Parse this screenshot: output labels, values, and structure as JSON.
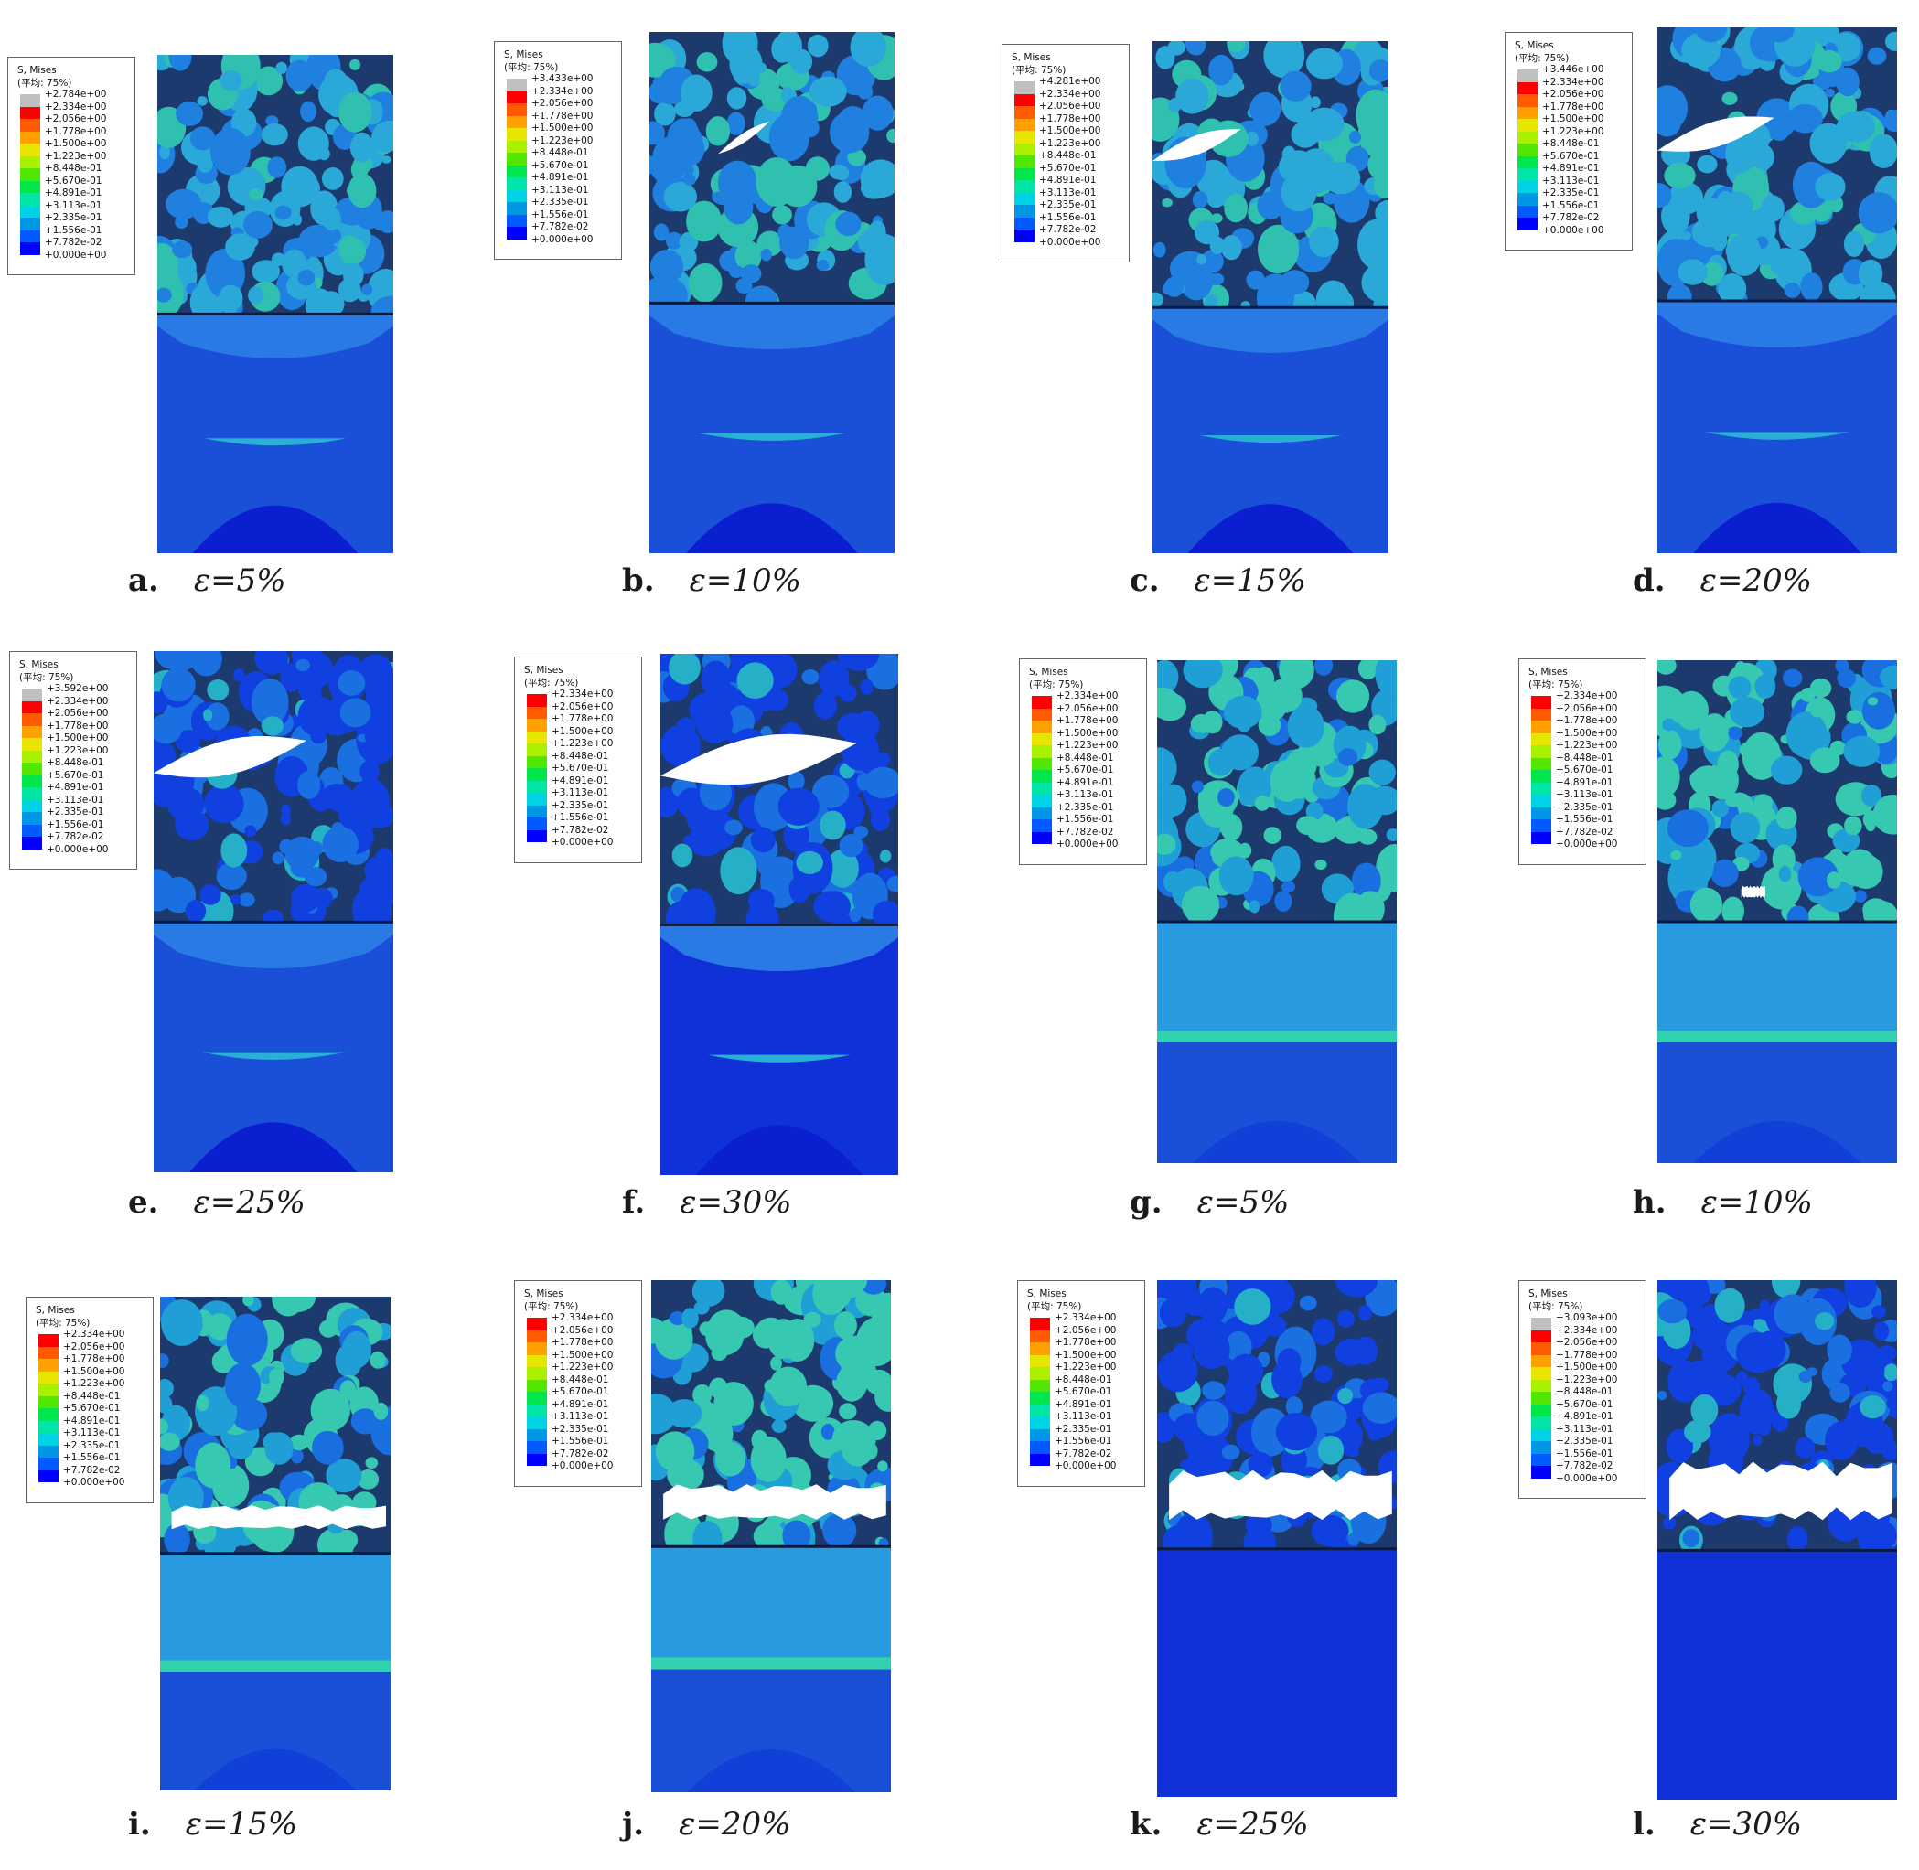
{
  "legend_title": "S, Mises",
  "legend_subtitle": "(平均: 75%)",
  "palette": [
    "#c0c0c0",
    "#ff0000",
    "#ff5a00",
    "#ffa000",
    "#e6e600",
    "#a8f000",
    "#50e600",
    "#00e64a",
    "#00e6a8",
    "#00d2e6",
    "#0096e6",
    "#005aff",
    "#0000ff"
  ],
  "scale_values": [
    "+2.334e+00",
    "+2.056e+00",
    "+1.778e+00",
    "+1.500e+00",
    "+1.223e+00",
    "+8.448e-01",
    "+5.670e-01",
    "+4.891e-01",
    "+3.113e-01",
    "+2.335e-01",
    "+1.556e-01",
    "+7.782e-02",
    "+0.000e+00"
  ],
  "panels": [
    {
      "label": "a.",
      "strain": "ε=5%",
      "max": "+2.784e+00",
      "group": "top",
      "crack": 0
    },
    {
      "label": "b.",
      "strain": "ε=10%",
      "max": "+3.433e+00",
      "group": "top",
      "crack": 0.08
    },
    {
      "label": "c.",
      "strain": "ε=15%",
      "max": "+4.281e+00",
      "group": "top",
      "crack": 0.3
    },
    {
      "label": "d.",
      "strain": "ε=20%",
      "max": "+3.446e+00",
      "group": "top",
      "crack": 0.45
    },
    {
      "label": "e.",
      "strain": "ε=25%",
      "max": "+3.592e+00",
      "group": "top",
      "crack": 0.65
    },
    {
      "label": "f.",
      "strain": "ε=30%",
      "max": "",
      "group": "top",
      "crack": 0.9
    },
    {
      "label": "g.",
      "strain": "ε=5%",
      "max": "",
      "group": "bottom",
      "crack": 0
    },
    {
      "label": "h.",
      "strain": "ε=10%",
      "max": "",
      "group": "bottom",
      "crack": 0.1
    },
    {
      "label": "i.",
      "strain": "ε=15%",
      "max": "",
      "group": "bottom",
      "crack": 0.3
    },
    {
      "label": "j.",
      "strain": "ε=20%",
      "max": "",
      "group": "bottom",
      "crack": 0.5
    },
    {
      "label": "k.",
      "strain": "ε=25%",
      "max": "",
      "group": "bottom",
      "crack": 0.75
    },
    {
      "label": "l.",
      "strain": "ε=30%",
      "max": "+3.093e+00",
      "group": "bottom",
      "crack": 0.9
    }
  ]
}
